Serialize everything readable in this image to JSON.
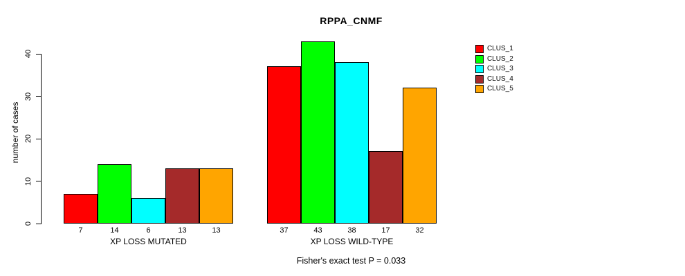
{
  "figure": {
    "background": "#ffffff",
    "text_color": "#000000"
  },
  "chart_data": {
    "type": "bar",
    "title": "RPPA_CNMF",
    "xlabel": "",
    "ylabel": "number of cases",
    "ylim": [
      0,
      40
    ],
    "yticks": [
      0,
      10,
      20,
      30,
      40
    ],
    "grid": false,
    "legend_position": "right",
    "bar_value_labels": true,
    "categories": [
      "XP LOSS MUTATED",
      "XP LOSS WILD-TYPE"
    ],
    "series": [
      {
        "name": "CLUS_1",
        "color": "#FF0000",
        "values": [
          7,
          37
        ]
      },
      {
        "name": "CLUS_2",
        "color": "#00FF00",
        "values": [
          14,
          43
        ]
      },
      {
        "name": "CLUS_3",
        "color": "#00FFFF",
        "values": [
          6,
          38
        ]
      },
      {
        "name": "CLUS_4",
        "color": "#A52A2A",
        "values": [
          13,
          17
        ]
      },
      {
        "name": "CLUS_5",
        "color": "#FFA500",
        "values": [
          13,
          32
        ]
      }
    ],
    "footnote": "Fisher's exact test P = 0.033"
  }
}
